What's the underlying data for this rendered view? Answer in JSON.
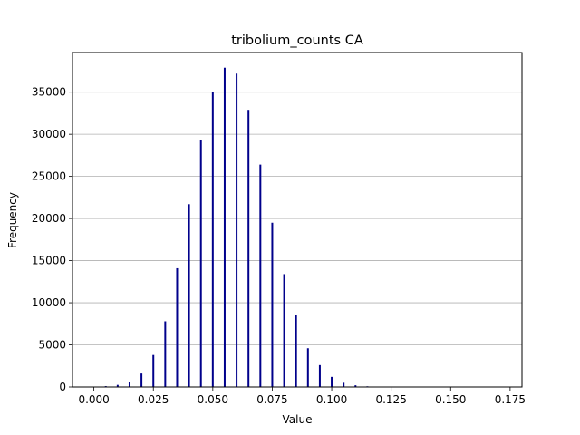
{
  "chart_data": {
    "type": "bar",
    "title": "tribolium_counts CA",
    "xlabel": "Value",
    "ylabel": "Frequency",
    "xlim": [
      -0.009,
      0.18
    ],
    "ylim": [
      0,
      39700
    ],
    "x_ticks": [
      "0.000",
      "0.025",
      "0.050",
      "0.075",
      "0.100",
      "0.125",
      "0.150",
      "0.175"
    ],
    "y_ticks": [
      "0",
      "5000",
      "10000",
      "15000",
      "20000",
      "25000",
      "30000",
      "35000"
    ],
    "grid": "y",
    "bar_color": "#00008b",
    "x": [
      0.0,
      0.005,
      0.01,
      0.015,
      0.02,
      0.025,
      0.03,
      0.035,
      0.04,
      0.045,
      0.05,
      0.055,
      0.06,
      0.065,
      0.07,
      0.075,
      0.08,
      0.085,
      0.09,
      0.095,
      0.1,
      0.105,
      0.11,
      0.115
    ],
    "values": [
      30,
      100,
      250,
      600,
      1600,
      3800,
      7800,
      14100,
      21700,
      29300,
      35000,
      37900,
      37200,
      32900,
      26400,
      19500,
      13400,
      8500,
      4600,
      2600,
      1200,
      500,
      200,
      80
    ]
  }
}
